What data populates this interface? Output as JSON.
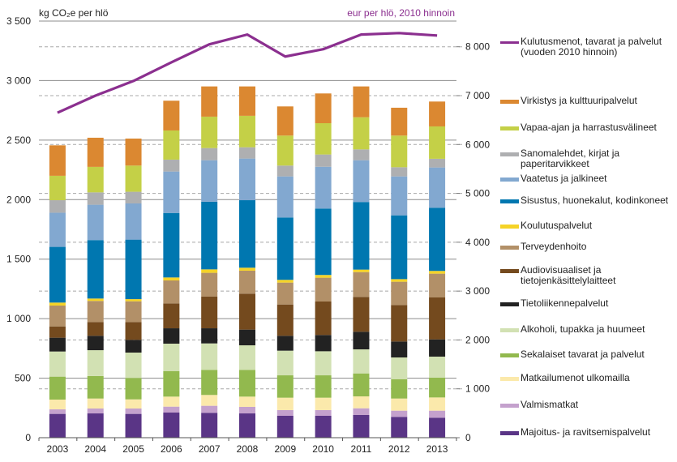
{
  "chart_data": {
    "type": "bar",
    "stacked": true,
    "title": "",
    "ylabel_left": "kg CO₂e per hlö",
    "ylabel_right": "eur per hlö, 2010 hinnoin",
    "xlabel": "",
    "categories": [
      "2003",
      "2004",
      "2005",
      "2006",
      "2007",
      "2008",
      "2009",
      "2010",
      "2011",
      "2012",
      "2013"
    ],
    "ylim_left": [
      0,
      3500
    ],
    "yticks_left": [
      0,
      500,
      1000,
      1500,
      2000,
      2500,
      3000,
      3500
    ],
    "ytick_labels_left": [
      "0",
      "500",
      "1 000",
      "1 500",
      "2 000",
      "2 500",
      "3 000",
      "3 500"
    ],
    "ylim_right": [
      0,
      8000
    ],
    "yticks_right": [
      0,
      1000,
      2000,
      3000,
      4000,
      5000,
      6000,
      7000,
      8000
    ],
    "ytick_labels_right": [
      "0",
      "1 000",
      "2 000",
      "3 000",
      "4 000",
      "5 000",
      "6 000",
      "7 000",
      "8 000"
    ],
    "grid": true,
    "legend_position": "right",
    "series": [
      {
        "name": "Majoitus- ja ravitsemispalvelut",
        "color": "#5a3586",
        "axis": "left",
        "values": [
          200,
          204,
          200,
          211,
          209,
          204,
          184,
          184,
          191,
          175,
          168
        ]
      },
      {
        "name": "Valmismatkat",
        "color": "#c4a1cd",
        "axis": "left",
        "values": [
          38,
          41,
          45,
          50,
          59,
          55,
          48,
          48,
          56,
          52,
          59
        ]
      },
      {
        "name": "Matkailumenot ulkomailla",
        "color": "#fbe9ab",
        "axis": "left",
        "values": [
          82,
          84,
          77,
          84,
          91,
          86,
          104,
          104,
          100,
          102,
          111
        ]
      },
      {
        "name": "Sekalaiset tavarat ja palvelut",
        "color": "#92b94e",
        "axis": "left",
        "values": [
          193,
          189,
          180,
          215,
          211,
          225,
          188,
          188,
          193,
          163,
          166
        ]
      },
      {
        "name": "Alkoholi, tupakka ja huumeet",
        "color": "#d2e1b3",
        "axis": "left",
        "values": [
          211,
          217,
          213,
          230,
          222,
          206,
          207,
          202,
          202,
          182,
          177
        ]
      },
      {
        "name": "Tietoliikennepalvelut",
        "color": "#222222",
        "axis": "left",
        "values": [
          116,
          121,
          107,
          129,
          127,
          132,
          125,
          137,
          148,
          134,
          145
        ]
      },
      {
        "name": "Audiovisuaaliset ja\ntietojenkäsittelylaitteet",
        "color": "#744a1e",
        "axis": "left",
        "values": [
          95,
          116,
          150,
          209,
          266,
          302,
          263,
          281,
          293,
          307,
          352
        ]
      },
      {
        "name": "Terveydenhoito",
        "color": "#b29068",
        "axis": "left",
        "values": [
          175,
          177,
          174,
          193,
          200,
          193,
          184,
          200,
          208,
          195,
          200
        ]
      },
      {
        "name": "Koulutuspalvelut",
        "color": "#f5d327",
        "axis": "left",
        "values": [
          25,
          20,
          18,
          25,
          29,
          25,
          23,
          23,
          21,
          22,
          23
        ]
      },
      {
        "name": "Sisustus, huonekalut, kodinkoneet",
        "color": "#0077b0",
        "axis": "left",
        "values": [
          468,
          491,
          500,
          542,
          568,
          567,
          524,
          558,
          568,
          536,
          531
        ]
      },
      {
        "name": "Vaatetus ja jalkineet",
        "color": "#82a8d0",
        "axis": "left",
        "values": [
          287,
          297,
          304,
          348,
          349,
          350,
          345,
          351,
          351,
          327,
          338
        ]
      },
      {
        "name": "Sanomalehdet, kirjat ja\npaperitarvikkeet",
        "color": "#aeafb1",
        "axis": "left",
        "values": [
          105,
          104,
          98,
          100,
          102,
          95,
          91,
          103,
          91,
          77,
          73
        ]
      },
      {
        "name": "Vapaa-ajan ja harrastusvälineet",
        "color": "#c4d047",
        "axis": "left",
        "values": [
          205,
          214,
          220,
          245,
          264,
          264,
          252,
          263,
          270,
          266,
          272
        ]
      },
      {
        "name": "Virkistys ja kulttuuripalvelut",
        "color": "#db8831",
        "axis": "left",
        "values": [
          256,
          245,
          227,
          250,
          254,
          247,
          245,
          250,
          259,
          234,
          209
        ]
      }
    ],
    "line_series": {
      "name": "Kulutusmenot, tavarat ja palvelut\n(vuoden 2010 hinnoin)",
      "type": "line",
      "color": "#8b2f8f",
      "axis": "right",
      "values": [
        6650,
        7000,
        7300,
        7680,
        8050,
        8250,
        7800,
        7950,
        8250,
        8280,
        8230
      ]
    }
  }
}
